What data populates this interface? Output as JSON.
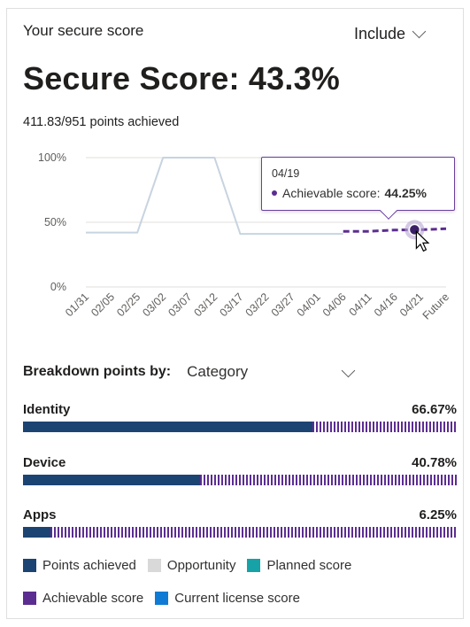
{
  "card": {
    "title": "Your secure score",
    "include_label": "Include",
    "headline": "Secure Score: 43.3%",
    "points_text": "411.83/951 points achieved"
  },
  "chart_data": {
    "type": "line",
    "y_ticks": [
      "100%",
      "50%",
      "0%"
    ],
    "ylim": [
      0,
      100
    ],
    "categories": [
      "01/31",
      "02/05",
      "02/25",
      "03/02",
      "03/07",
      "03/12",
      "03/17",
      "03/22",
      "03/27",
      "04/01",
      "04/06",
      "04/11",
      "04/16",
      "04/21",
      "Future"
    ],
    "series": [
      {
        "name": "",
        "style": "solid",
        "color": "#c7d4e0",
        "values": [
          42,
          42,
          42,
          100,
          100,
          100,
          41,
          41,
          41,
          41,
          41,
          null,
          null,
          null,
          null
        ]
      },
      {
        "name": "Achievable score",
        "style": "dashed",
        "color": "#5c2d91",
        "values": [
          null,
          null,
          null,
          null,
          null,
          null,
          null,
          null,
          null,
          null,
          43,
          43,
          44,
          44.25,
          45
        ]
      }
    ],
    "tooltip": {
      "date": "04/19",
      "label": "Achievable score:",
      "value": "44.25%"
    }
  },
  "breakdown": {
    "label": "Breakdown points by:",
    "value": "Category"
  },
  "categories": [
    {
      "name": "Identity",
      "percent": "66.67%",
      "achieved_fraction": 0.6667
    },
    {
      "name": "Device",
      "percent": "40.78%",
      "achieved_fraction": 0.4078
    },
    {
      "name": "Apps",
      "percent": "6.25%",
      "achieved_fraction": 0.0625
    }
  ],
  "legend": [
    {
      "label": "Points achieved",
      "color": "#1b4472"
    },
    {
      "label": "Opportunity",
      "color": "#d9d9d9"
    },
    {
      "label": "Planned score",
      "color": "#17a2a8"
    },
    {
      "label": "Achievable score",
      "color": "#5c2d91"
    },
    {
      "label": "Current license score",
      "color": "#0f7bd4"
    }
  ]
}
